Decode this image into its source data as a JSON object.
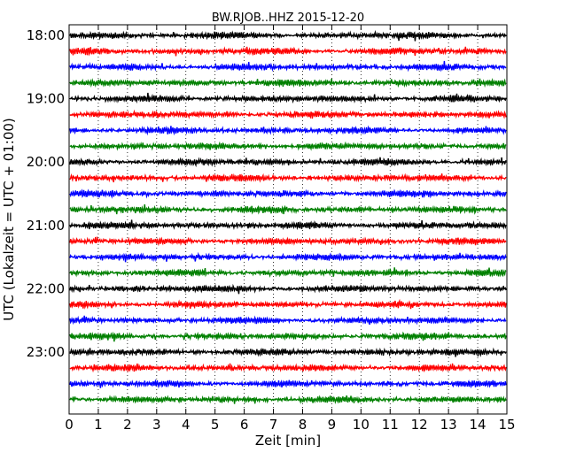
{
  "chart_data": {
    "type": "line",
    "title": "BW.RJOB..HHZ 2015-12-20",
    "xlabel": "Zeit  [min]",
    "ylabel": "UTC (Lokalzeit = UTC + 01:00)",
    "xlim": [
      0,
      15
    ],
    "x_ticks": [
      "0",
      "1",
      "2",
      "3",
      "4",
      "5",
      "6",
      "7",
      "8",
      "9",
      "10",
      "11",
      "12",
      "13",
      "14",
      "15"
    ],
    "y_ticks": [
      "18:00",
      "19:00",
      "20:00",
      "21:00",
      "22:00",
      "23:00"
    ],
    "grid": "vertical dotted",
    "trace_colors": [
      "#000000",
      "#ff0000",
      "#0000ff",
      "#008000"
    ],
    "trace_count": 24,
    "trace_interval_minutes": 15,
    "first_trace_time": "18:00"
  }
}
